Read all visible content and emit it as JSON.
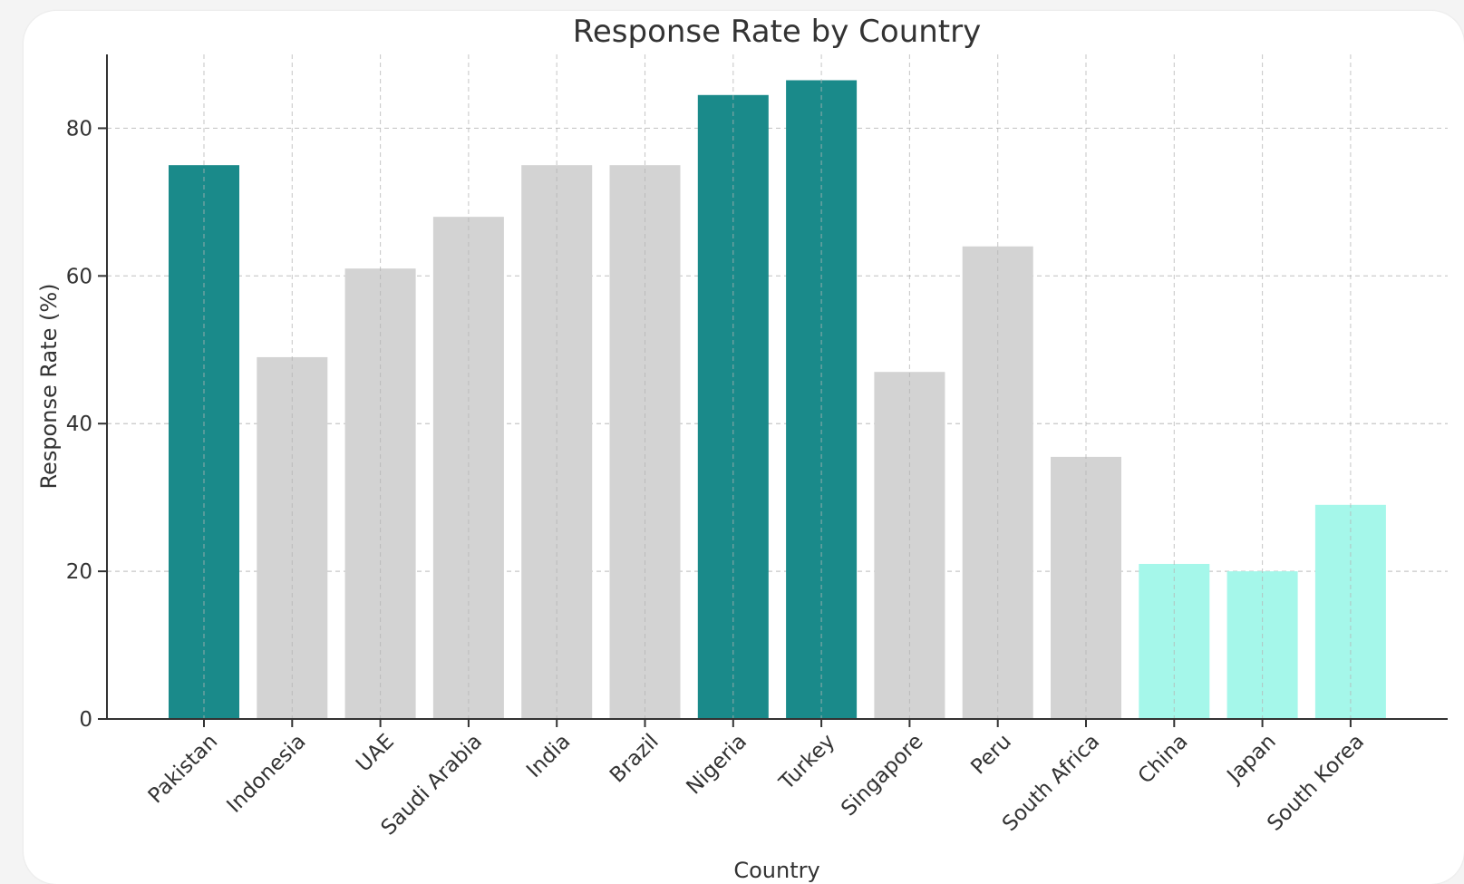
{
  "chart_data": {
    "type": "bar",
    "title": "Response Rate by Country",
    "xlabel": "Country",
    "ylabel": "Response Rate (%)",
    "ylim": [
      0,
      90
    ],
    "yticks": [
      0,
      20,
      40,
      60,
      80
    ],
    "grid": true,
    "categories": [
      "Pakistan",
      "Indonesia",
      "UAE",
      "Saudi Arabia",
      "India",
      "Brazil",
      "Nigeria",
      "Turkey",
      "Singapore",
      "Peru",
      "South Africa",
      "China",
      "Japan",
      "South Korea"
    ],
    "values": [
      75,
      49,
      61,
      68,
      75,
      75,
      84.5,
      86.5,
      47,
      64,
      35.5,
      21,
      20,
      29
    ],
    "bar_colors": [
      "#1a8a8a",
      "#d3d3d3",
      "#d3d3d3",
      "#d3d3d3",
      "#d3d3d3",
      "#d3d3d3",
      "#1a8a8a",
      "#1a8a8a",
      "#d3d3d3",
      "#d3d3d3",
      "#d3d3d3",
      "#a5f7ea",
      "#a5f7ea",
      "#a5f7ea"
    ]
  }
}
